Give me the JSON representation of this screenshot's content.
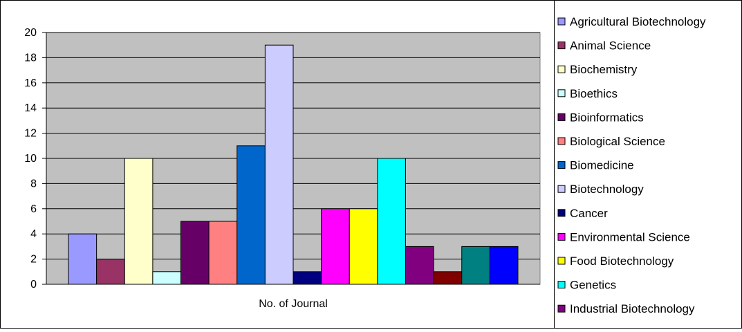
{
  "chart_data": {
    "type": "bar",
    "xlabel": "No. of Journal",
    "ylabel": "",
    "ylim": [
      0,
      20
    ],
    "yticks": [
      0,
      2,
      4,
      6,
      8,
      10,
      12,
      14,
      16,
      18,
      20
    ],
    "grid": true,
    "plot_background": "#c0c0c0",
    "legend_position": "right",
    "series": [
      {
        "name": "Agricultural Biotechnology",
        "value": 4,
        "color": "#9999ff"
      },
      {
        "name": "Animal Science",
        "value": 2,
        "color": "#993366"
      },
      {
        "name": "Biochemistry",
        "value": 10,
        "color": "#ffffcc"
      },
      {
        "name": "Bioethics",
        "value": 1,
        "color": "#ccffff"
      },
      {
        "name": "Bioinformatics",
        "value": 5,
        "color": "#660066"
      },
      {
        "name": "Biological Science",
        "value": 5,
        "color": "#ff8080"
      },
      {
        "name": "Biomedicine",
        "value": 11,
        "color": "#0066cc"
      },
      {
        "name": "Biotechnology",
        "value": 19,
        "color": "#ccccff"
      },
      {
        "name": "Cancer",
        "value": 1,
        "color": "#000080"
      },
      {
        "name": "Environmental Science",
        "value": 6,
        "color": "#ff00ff"
      },
      {
        "name": "Food Biotechnology",
        "value": 6,
        "color": "#ffff00"
      },
      {
        "name": "Genetics",
        "value": 10,
        "color": "#00ffff"
      },
      {
        "name": "Industrial Biotechnology",
        "value": 3,
        "color": "#800080"
      },
      {
        "name": "",
        "value": 1,
        "color": "#800000"
      },
      {
        "name": "",
        "value": 3,
        "color": "#008080"
      },
      {
        "name": "",
        "value": 3,
        "color": "#0000ff"
      }
    ]
  }
}
